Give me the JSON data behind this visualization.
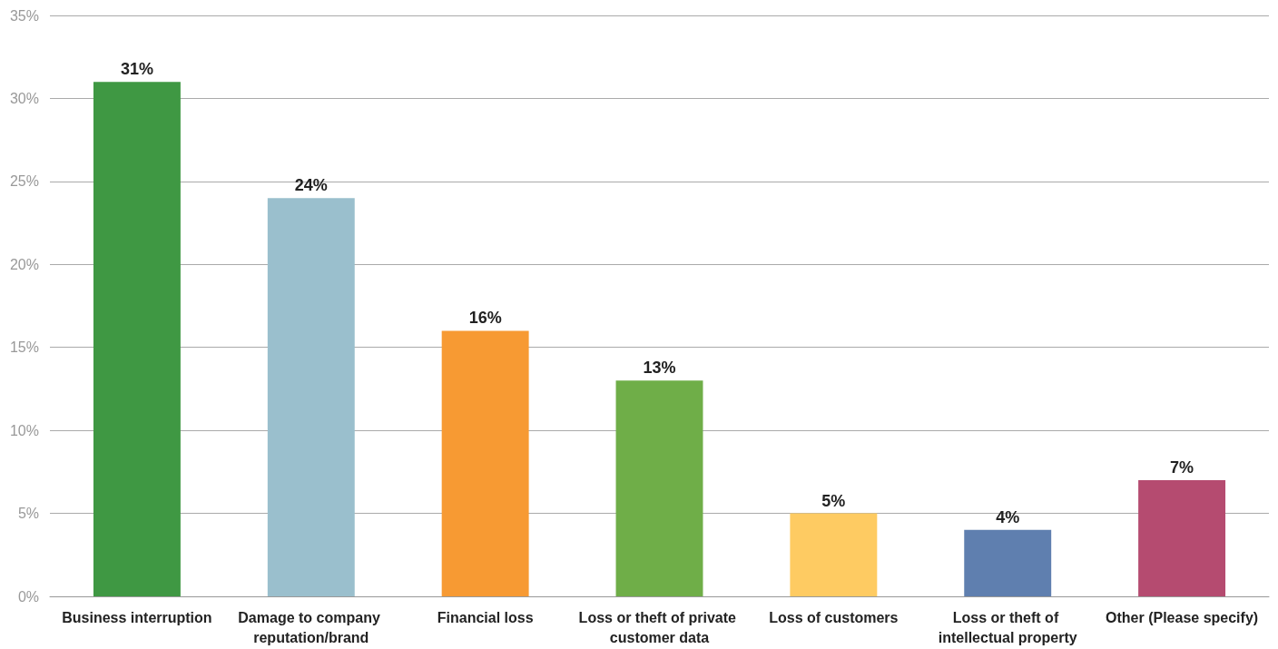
{
  "chart_data": {
    "type": "bar",
    "categories": [
      "Business interruption",
      "Damage to company reputation/brand",
      "Financial loss",
      "Loss or theft of private customer data",
      "Loss of customers",
      "Loss or theft of intellectual property",
      "Other (Please specify)"
    ],
    "values": [
      31,
      24,
      16,
      13,
      5,
      4,
      7
    ],
    "colors": [
      "#3f9843",
      "#9abfcd",
      "#f79a33",
      "#6fae48",
      "#fecb62",
      "#5f7faf",
      "#b54b70"
    ],
    "value_labels": [
      "31%",
      "24%",
      "16%",
      "13%",
      "5%",
      "4%",
      "7%"
    ],
    "ylim": [
      0,
      35
    ],
    "yticks": [
      {
        "value": 0,
        "label": "0%"
      },
      {
        "value": 5,
        "label": "5%"
      },
      {
        "value": 10,
        "label": "10%"
      },
      {
        "value": 15,
        "label": "15%"
      },
      {
        "value": 20,
        "label": "20%"
      },
      {
        "value": 25,
        "label": "25%"
      },
      {
        "value": 30,
        "label": "30%"
      },
      {
        "value": 35,
        "label": "35%"
      }
    ],
    "grid": "y"
  }
}
